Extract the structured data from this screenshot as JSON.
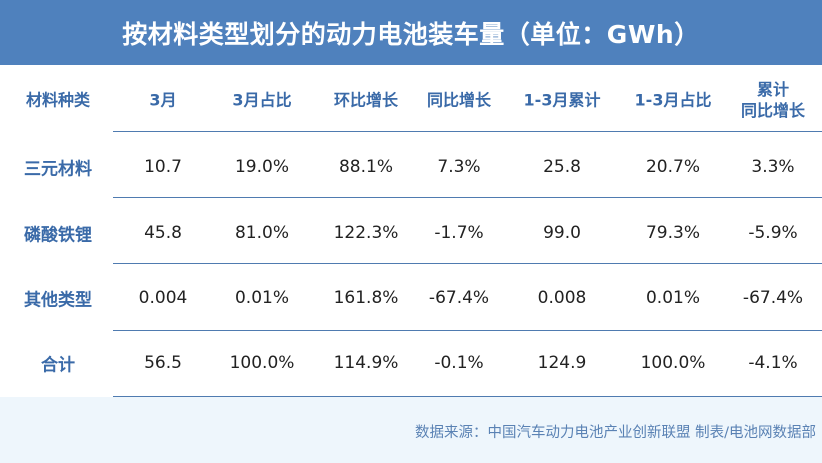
{
  "title": "按材料类型划分的动力电池装车量（单位：GWh）",
  "chart_data": {
    "type": "table",
    "title": "按材料类型划分的动力电池装车量（单位：GWh）",
    "columns": [
      "材料种类",
      "3月",
      "3月占比",
      "环比增长",
      "同比增长",
      "1-3月累计",
      "1-3月占比",
      "累计\n同比增长"
    ],
    "rows": [
      [
        "三元材料",
        "10.7",
        "19.0%",
        "88.1%",
        "7.3%",
        "25.8",
        "20.7%",
        "3.3%"
      ],
      [
        "磷酸铁锂",
        "45.8",
        "81.0%",
        "122.3%",
        "-1.7%",
        "99.0",
        "79.3%",
        "-5.9%"
      ],
      [
        "其他类型",
        "0.004",
        "0.01%",
        "161.8%",
        "-67.4%",
        "0.008",
        "0.01%",
        "-67.4%"
      ],
      [
        "合计",
        "56.5",
        "100.0%",
        "114.9%",
        "-0.1%",
        "124.9",
        "100.0%",
        "-4.1%"
      ]
    ]
  },
  "footer": {
    "source": "数据来源：中国汽车动力电池产业创新联盟 制表/电池网数据部"
  },
  "colors": {
    "title_bg": "#4f81bd",
    "header_text": "#3a6aa8",
    "footer_bg": "#eef6fc"
  }
}
